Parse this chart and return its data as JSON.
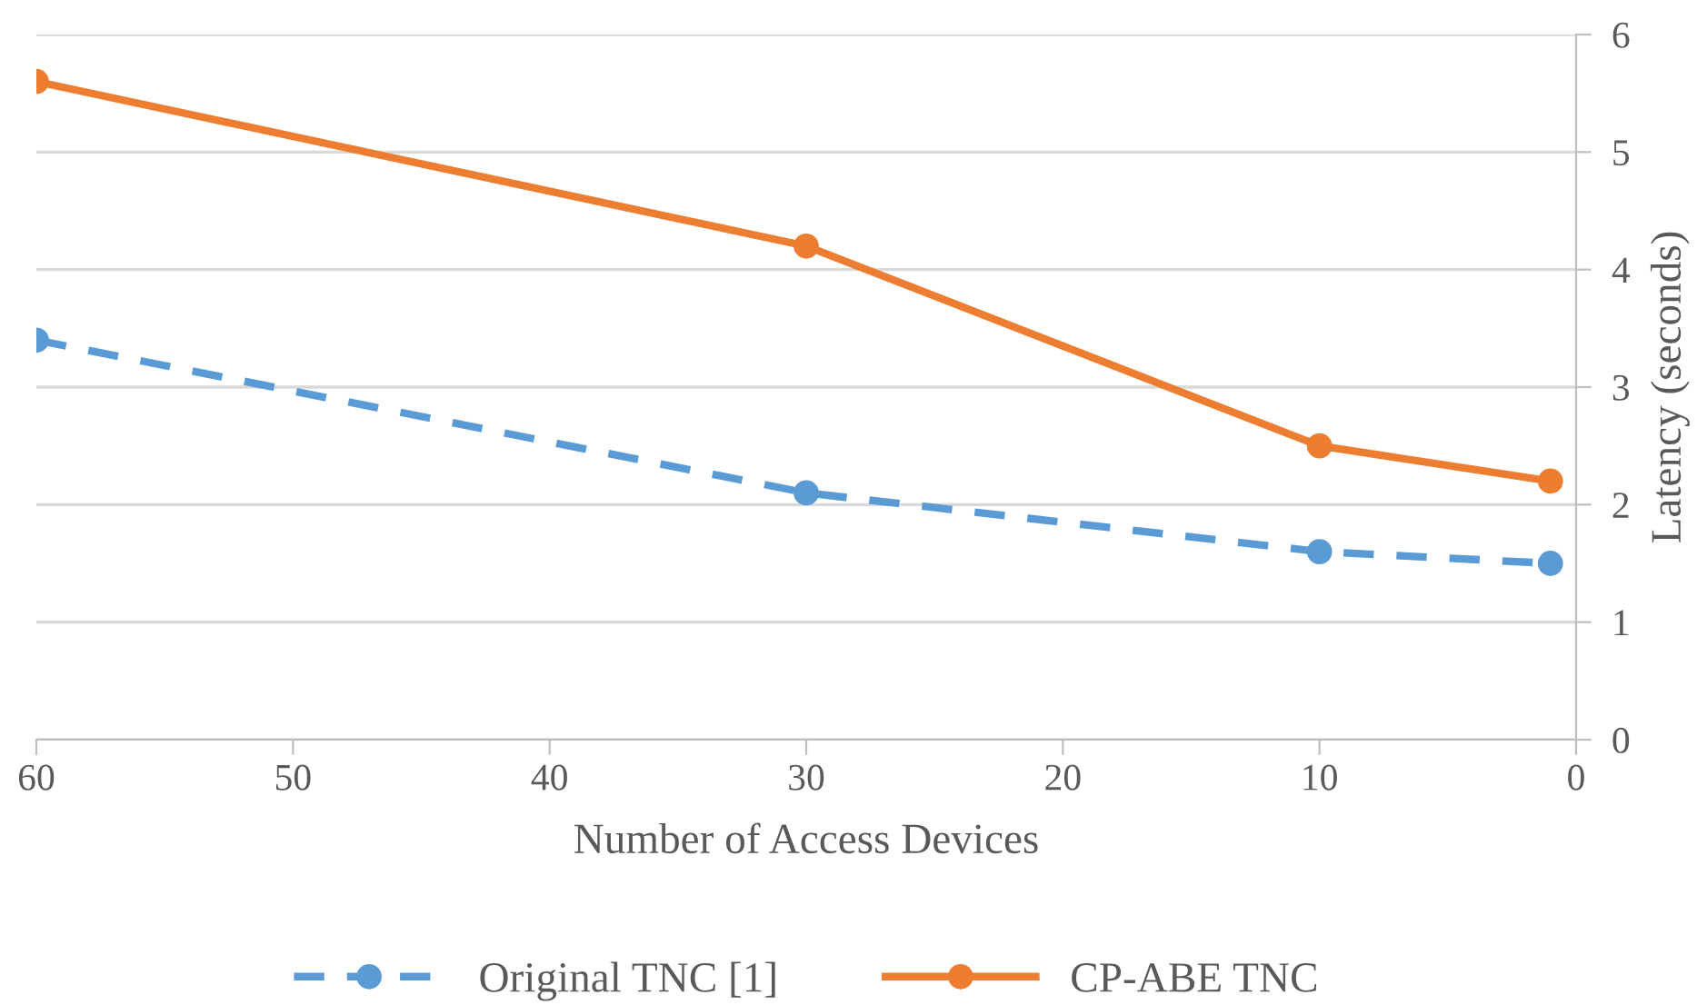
{
  "chart_data": {
    "type": "line",
    "xlabel": "Number of Access Devices",
    "ylabel": "Latency (seconds)",
    "xlim": [
      60,
      0
    ],
    "xticks": [
      60,
      50,
      40,
      30,
      20,
      10,
      0
    ],
    "ylim": [
      0,
      6
    ],
    "yticks": [
      0,
      1,
      2,
      3,
      4,
      5,
      6
    ],
    "grid": "y",
    "legend": "bottom",
    "marker": "circle",
    "series": [
      {
        "name": "Original TNC [1]",
        "color": "#5b9bd5",
        "line_style": "dashed",
        "x": [
          60,
          30,
          10,
          1
        ],
        "values": [
          3.4,
          2.1,
          1.6,
          1.5
        ]
      },
      {
        "name": "CP-ABE TNC",
        "color": "#ed7d31",
        "line_style": "solid",
        "x": [
          60,
          30,
          10,
          1
        ],
        "values": [
          5.6,
          4.2,
          2.5,
          2.2
        ]
      }
    ]
  }
}
